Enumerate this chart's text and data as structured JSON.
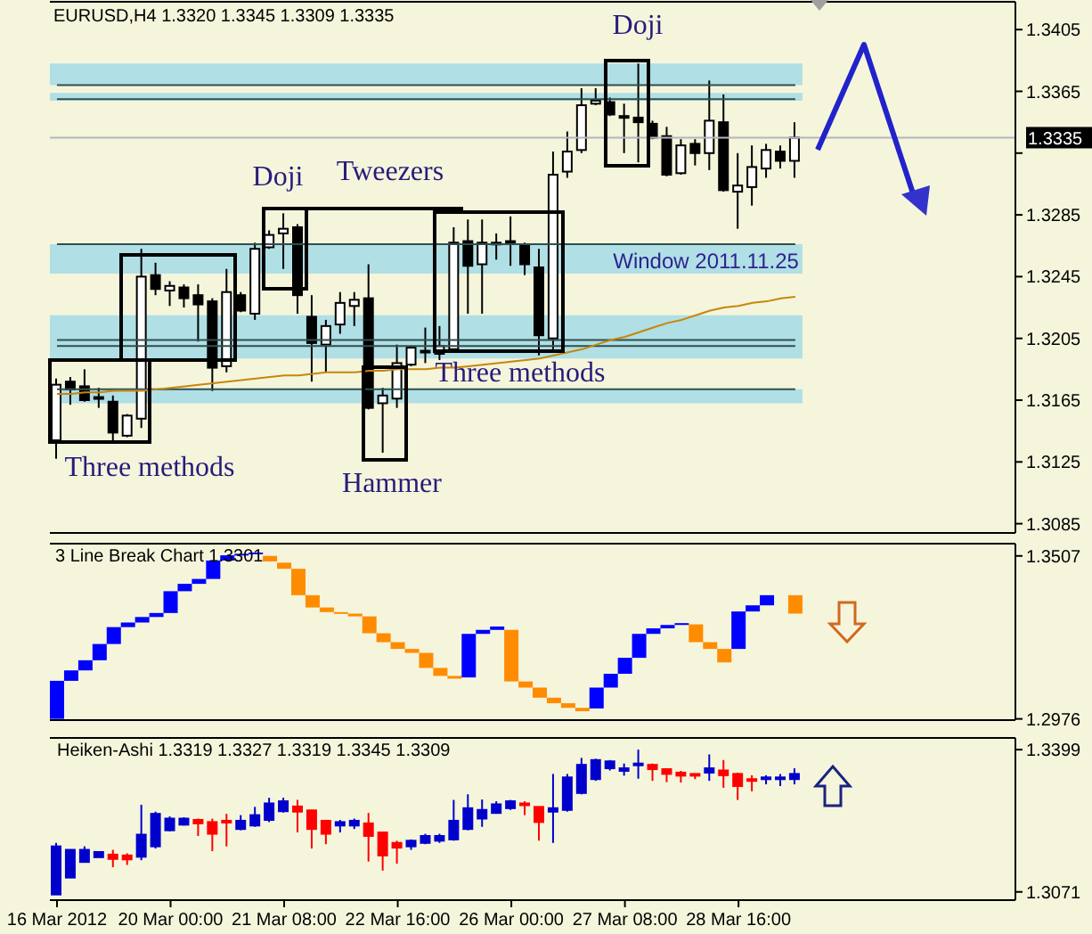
{
  "chart_data": [
    {
      "type": "candlestick",
      "title": "EURUSD,H4 1.3320 1.3345 1.3309 1.3335",
      "categories": [
        null,
        null,
        null,
        null,
        null,
        null,
        null,
        null,
        null,
        null,
        null,
        null,
        null,
        null,
        null,
        null,
        null,
        null,
        null,
        null,
        null,
        null,
        null,
        null,
        null,
        null,
        null,
        null,
        null,
        null,
        null,
        null,
        null,
        null,
        null,
        null,
        null,
        null,
        null,
        null,
        null,
        null,
        null,
        null,
        null,
        null,
        null,
        null,
        null,
        null,
        null,
        null,
        null,
        null,
        null,
        null,
        null,
        null,
        null,
        null,
        null,
        null,
        null,
        null,
        null,
        null,
        null,
        null
      ],
      "ohlc": [
        [
          1.3139,
          1.3179,
          1.3127,
          1.3175
        ],
        [
          1.3177,
          1.318,
          1.3162,
          1.3172
        ],
        [
          1.3174,
          1.3185,
          1.3164,
          1.3165
        ],
        [
          1.3167,
          1.3173,
          1.316,
          1.3166
        ],
        [
          1.3164,
          1.3168,
          1.3139,
          1.3144
        ],
        [
          1.3142,
          1.3156,
          1.3141,
          1.3155
        ],
        [
          1.3153,
          1.3263,
          1.3147,
          1.3245
        ],
        [
          1.3246,
          1.3254,
          1.3233,
          1.3237
        ],
        [
          1.3236,
          1.3242,
          1.3226,
          1.3239
        ],
        [
          1.3238,
          1.324,
          1.3225,
          1.3231
        ],
        [
          1.3233,
          1.324,
          1.3203,
          1.3227
        ],
        [
          1.3229,
          1.3231,
          1.3171,
          1.3186
        ],
        [
          1.3187,
          1.325,
          1.3183,
          1.3235
        ],
        [
          1.3233,
          1.3235,
          1.3222,
          1.3223
        ],
        [
          1.3221,
          1.3267,
          1.3217,
          1.3263
        ],
        [
          1.3264,
          1.3275,
          1.3263,
          1.3272
        ],
        [
          1.3273,
          1.3286,
          1.325,
          1.3276
        ],
        [
          1.3277,
          1.3279,
          1.3221,
          1.3233
        ],
        [
          1.3219,
          1.3233,
          1.3177,
          1.3202
        ],
        [
          1.3201,
          1.3217,
          1.3183,
          1.3213
        ],
        [
          1.3214,
          1.3235,
          1.3208,
          1.3228
        ],
        [
          1.3226,
          1.3235,
          1.3213,
          1.323
        ],
        [
          1.3231,
          1.3253,
          1.3159,
          1.316
        ],
        [
          1.3163,
          1.3173,
          1.3131,
          1.3168
        ],
        [
          1.3166,
          1.3201,
          1.316,
          1.3189
        ],
        [
          1.3188,
          1.32,
          1.3187,
          1.3199
        ],
        [
          1.3197,
          1.3212,
          1.3189,
          1.3197
        ],
        [
          1.3195,
          1.3213,
          1.3191,
          1.32
        ],
        [
          1.3198,
          1.3277,
          1.3197,
          1.3267
        ],
        [
          1.3268,
          1.3282,
          1.3221,
          1.3252
        ],
        [
          1.3253,
          1.3282,
          1.3221,
          1.3267
        ],
        [
          1.3267,
          1.3273,
          1.3256,
          1.3267
        ],
        [
          1.3268,
          1.3284,
          1.3252,
          1.3266
        ],
        [
          1.3266,
          1.3267,
          1.3246,
          1.3253
        ],
        [
          1.3251,
          1.3263,
          1.3194,
          1.3207
        ],
        [
          1.3205,
          1.3326,
          1.3198,
          1.3311
        ],
        [
          1.3313,
          1.3339,
          1.3309,
          1.3326
        ],
        [
          1.3327,
          1.3367,
          1.3325,
          1.3356
        ],
        [
          1.3357,
          1.3367,
          1.3356,
          1.3359
        ],
        [
          1.3358,
          1.3361,
          1.3349,
          1.335
        ],
        [
          1.3349,
          1.3357,
          1.3325,
          1.3348
        ],
        [
          1.3348,
          1.3383,
          1.3319,
          1.3345
        ],
        [
          1.3344,
          1.3346,
          1.3334,
          1.3335
        ],
        [
          1.3336,
          1.3342,
          1.331,
          1.3311
        ],
        [
          1.3312,
          1.3334,
          1.3311,
          1.333
        ],
        [
          1.3331,
          1.3334,
          1.3317,
          1.3325
        ],
        [
          1.3325,
          1.3372,
          1.3314,
          1.3346
        ],
        [
          1.3345,
          1.3363,
          1.33,
          1.3301
        ],
        [
          1.33,
          1.3325,
          1.3276,
          1.3304
        ],
        [
          1.3303,
          1.333,
          1.3291,
          1.3316
        ],
        [
          1.3315,
          1.3331,
          1.3309,
          1.3327
        ],
        [
          1.3326,
          1.333,
          1.3315,
          1.332
        ],
        [
          1.332,
          1.3345,
          1.3309,
          1.3335
        ],
        null,
        null,
        null,
        null,
        null,
        null,
        null,
        null,
        null,
        null,
        null,
        null,
        null,
        null,
        null
      ],
      "colors": [
        "#ffffff",
        "#000000",
        "#000000",
        "#000000",
        "#000000",
        "#ffffff",
        "#ffffff",
        "#000000",
        "#ffffff",
        "#000000",
        "#000000",
        "#000000",
        "#ffffff",
        "#000000",
        "#ffffff",
        "#ffffff",
        "#ffffff",
        "#000000",
        "#000000",
        "#ffffff",
        "#ffffff",
        "#ffffff",
        "#000000",
        "#ffffff",
        "#ffffff",
        "#ffffff",
        "#000000",
        "#ffffff",
        "#ffffff",
        "#000000",
        "#ffffff",
        "#000000",
        "#000000",
        "#000000",
        "#000000",
        "#ffffff",
        "#ffffff",
        "#ffffff",
        "#ffffff",
        "#000000",
        "#000000",
        "#000000",
        "#000000",
        "#000000",
        "#ffffff",
        "#000000",
        "#ffffff",
        "#000000",
        "#ffffff",
        "#ffffff",
        "#ffffff",
        "#000000",
        "#ffffff",
        null,
        null,
        null,
        null,
        null,
        null,
        null,
        null,
        null,
        null,
        null,
        null,
        null,
        null,
        null
      ],
      "series": [
        {
          "type": "line",
          "color": "#c8860a",
          "values": [
            1.3169,
            1.3169,
            1.317,
            1.317,
            1.3171,
            1.3171,
            1.3171,
            1.3172,
            1.3173,
            1.3174,
            1.3175,
            1.3176,
            1.3177,
            1.3178,
            1.3179,
            1.318,
            1.3181,
            1.3181,
            1.3182,
            1.3183,
            1.3183,
            1.3183,
            1.3184,
            1.3184,
            1.3185,
            1.3185,
            1.3185,
            1.3186,
            1.3186,
            1.3187,
            1.3188,
            1.3189,
            1.319,
            1.3191,
            1.3192,
            1.3194,
            1.3196,
            1.3198,
            1.3201,
            1.3204,
            1.3206,
            1.3209,
            1.3212,
            1.3215,
            1.3217,
            1.322,
            1.3223,
            1.3225,
            1.3226,
            1.3228,
            1.3229,
            1.3231,
            1.3232,
            null,
            null,
            null,
            null,
            null,
            null,
            null,
            null,
            null,
            null,
            null,
            null,
            null,
            null,
            null
          ]
        }
      ],
      "ylim": [
        1.3079,
        1.3423
      ],
      "yticks": [
        1.3085,
        1.3125,
        1.3165,
        1.3205,
        1.3245,
        1.3285,
        {
          "value": 1.3325,
          "label": null
        },
        1.3365,
        1.3405
      ],
      "bands": [
        {
          "axis": "y",
          "from": 1.3369,
          "to": 1.3383,
          "color": "#b0dfe5"
        },
        {
          "axis": "y",
          "from": 1.3359,
          "to": 1.3364,
          "color": "#b0dfe5"
        },
        {
          "axis": "y",
          "from": 1.3247,
          "to": 1.3266,
          "color": "#b0dfe5",
          "label": "Window 2011.11.25"
        },
        {
          "axis": "y",
          "from": 1.3192,
          "to": 1.322,
          "color": "#b0dfe5"
        },
        {
          "axis": "y",
          "from": 1.3163,
          "to": 1.3172,
          "color": "#b0dfe5"
        }
      ],
      "ref_lines": [
        {
          "axis": "y",
          "value": 1.3369,
          "color": "#2f4f4f"
        },
        {
          "axis": "y",
          "value": 1.336,
          "color": "#2f4f4f"
        },
        {
          "axis": "y",
          "value": 1.3266,
          "color": "#2f4f4f"
        },
        {
          "axis": "y",
          "value": 1.3204,
          "color": "#2f4f4f"
        },
        {
          "axis": "y",
          "value": 1.32,
          "color": "#2f4f4f"
        },
        {
          "axis": "y",
          "value": 1.3172,
          "color": "#2f4f4f"
        },
        {
          "axis": "y",
          "value": 1.3335,
          "color": "#b4b4c0",
          "label": "1.3335"
        }
      ],
      "annotations": [
        "Doji",
        "Tweezers",
        "Doji",
        "Three methods",
        "Three methods",
        "Hammer"
      ],
      "tick_labels": "y"
    },
    {
      "type": "bar",
      "title": "3 Line Break Chart 1.3301",
      "categories": [
        null,
        null,
        null,
        null,
        null,
        null,
        null,
        null,
        null,
        null,
        null,
        null,
        null,
        null,
        null,
        null,
        null,
        null,
        null,
        null,
        null,
        null,
        null,
        null,
        null,
        null,
        null,
        null,
        null,
        null,
        null,
        null,
        null,
        null,
        null,
        null,
        null,
        null,
        null,
        null,
        null,
        null,
        null,
        null,
        null,
        null,
        null,
        null,
        null,
        null,
        null,
        null,
        null,
        null,
        null,
        null,
        null,
        null,
        null,
        null,
        null,
        null,
        null,
        null,
        null,
        null,
        null,
        null
      ],
      "base": [
        1.2976,
        1.31,
        1.3134,
        1.3167,
        1.322,
        1.3275,
        1.329,
        1.3308,
        1.3321,
        1.3392,
        1.3416,
        1.3432,
        1.3492,
        1.3509,
        1.3514,
        1.3489,
        1.3465,
        1.3379,
        1.3339,
        1.3324,
        1.3319,
        1.331,
        1.3255,
        1.3226,
        1.3204,
        1.3191,
        1.3142,
        1.3116,
        1.3107,
        1.3111,
        1.3253,
        1.3266,
        1.3098,
        1.3078,
        1.3045,
        1.3027,
        1.3012,
        1.3001,
        1.301,
        1.3078,
        1.3123,
        1.3175,
        1.3253,
        1.3271,
        1.3282,
        1.3226,
        1.3204,
        1.316,
        1.3204,
        1.3326,
        1.3346,
        null,
        1.3319,
        null,
        null,
        null,
        null,
        null,
        null,
        null,
        null,
        null,
        null,
        null,
        null,
        null,
        null,
        null
      ],
      "values": [
        0.0124,
        0.0034,
        0.0033,
        0.0053,
        0.0055,
        0.0015,
        0.0018,
        0.0013,
        0.0071,
        0.0024,
        0.0016,
        0.006,
        0.0017,
        0.0005,
        0.0004,
        0.0018,
        0.002,
        0.0086,
        0.004,
        0.0015,
        0.0005,
        0.0009,
        0.0055,
        0.0029,
        0.0022,
        0.0013,
        0.0049,
        0.0026,
        0.0009,
        0.0142,
        0.0013,
        0.0011,
        0.0168,
        0.002,
        0.0033,
        0.0018,
        0.0015,
        0.0011,
        0.0068,
        0.0045,
        0.0052,
        0.0078,
        0.0018,
        0.0011,
        0.0006,
        0.0058,
        0.0022,
        0.0044,
        0.0122,
        0.002,
        0.0033,
        null,
        0.006,
        null,
        null,
        null,
        null,
        null,
        null,
        null,
        null,
        null,
        null,
        null,
        null,
        null,
        null,
        null
      ],
      "colors": [
        "#0000ff",
        "#0000ff",
        "#0000ff",
        "#0000ff",
        "#0000ff",
        "#0000ff",
        "#0000ff",
        "#0000ff",
        "#0000ff",
        "#0000ff",
        "#0000ff",
        "#0000ff",
        "#0000ff",
        "#0000ff",
        "#0000ff",
        "#ff8c00",
        "#ff8c00",
        "#ff8c00",
        "#ff8c00",
        "#ff8c00",
        "#ff8c00",
        "#ff8c00",
        "#ff8c00",
        "#ff8c00",
        "#ff8c00",
        "#ff8c00",
        "#ff8c00",
        "#ff8c00",
        "#ff8c00",
        "#0000ff",
        "#0000ff",
        "#0000ff",
        "#ff8c00",
        "#ff8c00",
        "#ff8c00",
        "#ff8c00",
        "#ff8c00",
        "#ff8c00",
        "#0000ff",
        "#0000ff",
        "#0000ff",
        "#0000ff",
        "#0000ff",
        "#0000ff",
        "#0000ff",
        "#ff8c00",
        "#ff8c00",
        "#ff8c00",
        "#0000ff",
        "#0000ff",
        "#0000ff",
        null,
        "#ff8c00",
        null,
        null,
        null,
        null,
        null,
        null,
        null,
        null,
        null,
        null,
        null,
        null,
        null,
        null,
        null
      ],
      "ylim": [
        1.2972,
        1.3547
      ],
      "yticks": [
        1.2976,
        1.3507
      ],
      "tick_labels": "y"
    },
    {
      "type": "candlestick",
      "title": "Heiken-Ashi 1.3319 1.3327 1.3319 1.3345 1.3309",
      "categories": [
        "16 Mar 2012",
        null,
        null,
        null,
        null,
        null,
        null,
        null,
        "20 Mar 00:00",
        null,
        null,
        null,
        null,
        null,
        null,
        null,
        "21 Mar 08:00",
        null,
        null,
        null,
        null,
        null,
        null,
        null,
        "22 Mar 16:00",
        null,
        null,
        null,
        null,
        null,
        null,
        null,
        "26 Mar 00:00",
        null,
        null,
        null,
        null,
        null,
        null,
        null,
        "27 Mar 08:00",
        null,
        null,
        null,
        null,
        null,
        null,
        null,
        "28 Mar 16:00",
        null,
        null,
        null,
        null,
        null,
        null,
        null,
        null,
        null,
        null,
        null,
        null,
        null,
        null,
        null,
        null,
        null,
        null,
        null
      ],
      "ohlc": [
        [
          1.3065,
          1.3184,
          1.3065,
          1.3176
        ],
        [
          1.3104,
          1.3168,
          1.3104,
          1.3168
        ],
        [
          1.314,
          1.3176,
          1.314,
          1.3168
        ],
        [
          1.3151,
          1.3165,
          1.3151,
          1.3163
        ],
        [
          1.3157,
          1.3168,
          1.3128,
          1.3147
        ],
        [
          1.3155,
          1.316,
          1.3133,
          1.3146
        ],
        [
          1.3152,
          1.3272,
          1.3144,
          1.3203
        ],
        [
          1.3176,
          1.3256,
          1.3171,
          1.3251
        ],
        [
          1.3213,
          1.3245,
          1.3211,
          1.324
        ],
        [
          1.3226,
          1.3243,
          1.3224,
          1.324
        ],
        [
          1.3237,
          1.324,
          1.32,
          1.3229
        ],
        [
          1.3232,
          1.324,
          1.3165,
          1.3205
        ],
        [
          1.3235,
          1.3251,
          1.3176,
          1.3232
        ],
        [
          1.3216,
          1.3248,
          1.3213,
          1.3235
        ],
        [
          1.3224,
          1.3267,
          1.3221,
          1.3248
        ],
        [
          1.3237,
          1.3288,
          1.3232,
          1.3275
        ],
        [
          1.3257,
          1.3288,
          1.3254,
          1.328
        ],
        [
          1.3268,
          1.3283,
          1.3208,
          1.3256
        ],
        [
          1.3259,
          1.326,
          1.3171,
          1.3216
        ],
        [
          1.3235,
          1.3237,
          1.3181,
          1.3205
        ],
        [
          1.3224,
          1.3237,
          1.3208,
          1.3232
        ],
        [
          1.3224,
          1.324,
          1.3216,
          1.3235
        ],
        [
          1.3229,
          1.3253,
          1.3141,
          1.32
        ],
        [
          1.3208,
          1.3208,
          1.312,
          1.3155
        ],
        [
          1.3184,
          1.3189,
          1.3136,
          1.3173
        ],
        [
          1.3176,
          1.3192,
          1.3168,
          1.3189
        ],
        [
          1.3184,
          1.3205,
          1.3181,
          1.32
        ],
        [
          1.3189,
          1.3205,
          1.3184,
          1.32
        ],
        [
          1.3192,
          1.3283,
          1.3189,
          1.3235
        ],
        [
          1.3216,
          1.3296,
          1.3213,
          1.3264
        ],
        [
          1.324,
          1.3284,
          1.3221,
          1.326
        ],
        [
          1.3253,
          1.328,
          1.3251,
          1.3273
        ],
        [
          1.3264,
          1.3283,
          1.326,
          1.328
        ],
        [
          1.3275,
          1.328,
          1.3248,
          1.3272
        ],
        [
          1.3267,
          1.3267,
          1.3189,
          1.3232
        ],
        [
          1.3256,
          1.3343,
          1.3184,
          1.3264
        ],
        [
          1.326,
          1.3343,
          1.3256,
          1.3335
        ],
        [
          1.3299,
          1.338,
          1.3296,
          1.3364
        ],
        [
          1.3331,
          1.3378,
          1.3327,
          1.3375
        ],
        [
          1.3356,
          1.3375,
          1.3351,
          1.3372
        ],
        [
          1.335,
          1.3367,
          1.3339,
          1.3356
        ],
        [
          1.3364,
          1.3399,
          1.3332,
          1.3367
        ],
        [
          1.3364,
          1.3367,
          1.3327,
          1.3354
        ],
        [
          1.3354,
          1.3356,
          1.3324,
          1.3343
        ],
        [
          1.3346,
          1.335,
          1.3323,
          1.3339
        ],
        [
          1.3343,
          1.3343,
          1.3331,
          1.334
        ],
        [
          1.3346,
          1.3388,
          1.3327,
          1.3356
        ],
        [
          1.3351,
          1.3375,
          1.3311,
          1.334
        ],
        [
          1.3343,
          1.3346,
          1.3283,
          1.3315
        ],
        [
          1.3331,
          1.334,
          1.3303,
          1.3327
        ],
        [
          1.3331,
          1.334,
          1.3319,
          1.3335
        ],
        [
          1.3331,
          1.3343,
          1.3315,
          1.3335
        ],
        [
          1.3331,
          1.3356,
          1.3319,
          1.3343
        ],
        null,
        null,
        null,
        null,
        null,
        null,
        null,
        null,
        null,
        null,
        null,
        null,
        null,
        null,
        null
      ],
      "colors": [
        "#0000cc",
        "#0000cc",
        "#0000cc",
        "#0000cc",
        "#ff0000",
        "#ff0000",
        "#0000cc",
        "#0000cc",
        "#0000cc",
        "#0000cc",
        "#ff0000",
        "#ff0000",
        "#ff0000",
        "#0000cc",
        "#0000cc",
        "#0000cc",
        "#0000cc",
        "#ff0000",
        "#ff0000",
        "#ff0000",
        "#0000cc",
        "#0000cc",
        "#ff0000",
        "#ff0000",
        "#ff0000",
        "#0000cc",
        "#0000cc",
        "#0000cc",
        "#0000cc",
        "#0000cc",
        "#0000cc",
        "#0000cc",
        "#0000cc",
        "#ff0000",
        "#ff0000",
        "#0000cc",
        "#0000cc",
        "#0000cc",
        "#0000cc",
        "#0000cc",
        "#0000cc",
        "#0000cc",
        "#ff0000",
        "#ff0000",
        "#ff0000",
        "#ff0000",
        "#0000cc",
        "#ff0000",
        "#ff0000",
        "#ff0000",
        "#0000cc",
        "#0000cc",
        "#0000cc",
        null,
        null,
        null,
        null,
        null,
        null,
        null,
        null,
        null,
        null,
        null,
        null,
        null,
        null,
        null
      ],
      "ylim": [
        1.3052,
        1.3426
      ],
      "yticks": [
        1.3071,
        1.3399
      ]
    }
  ]
}
